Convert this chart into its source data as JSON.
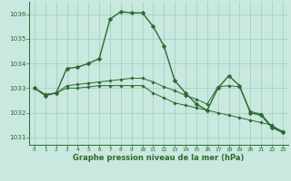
{
  "bg_color": "#c8e8e0",
  "grid_color": "#a0ccb8",
  "line_color": "#2d6a2d",
  "ylim": [
    1030.7,
    1036.5
  ],
  "xlim": [
    -0.5,
    23.5
  ],
  "yticks": [
    1031,
    1032,
    1033,
    1034,
    1035,
    1036
  ],
  "xtick_labels": [
    "0",
    "1",
    "2",
    "3",
    "4",
    "5",
    "6",
    "7",
    "8",
    "9",
    "10",
    "11",
    "12",
    "13",
    "14",
    "15",
    "16",
    "17",
    "18",
    "19",
    "20",
    "21",
    "22",
    "23"
  ],
  "xlabel": "Graphe pression niveau de la mer (hPa)",
  "s1": [
    1033.0,
    1032.7,
    1032.8,
    1033.8,
    1033.85,
    1034.0,
    1034.2,
    1035.8,
    1036.1,
    1036.05,
    1036.05,
    1035.5,
    1034.7,
    1033.3,
    1032.8,
    1032.35,
    1032.1,
    1033.0,
    1033.5,
    1033.1,
    1032.0,
    1031.9,
    1031.4,
    1031.2
  ],
  "s2": [
    1033.0,
    1032.75,
    1032.8,
    1033.1,
    1033.15,
    1033.2,
    1033.25,
    1033.3,
    1033.35,
    1033.4,
    1033.4,
    1033.25,
    1033.05,
    1032.9,
    1032.7,
    1032.55,
    1032.35,
    1033.05,
    1033.1,
    1033.05,
    1032.05,
    1031.95,
    1031.45,
    1031.25
  ],
  "s3": [
    1033.0,
    1032.7,
    1032.8,
    1033.0,
    1033.0,
    1033.05,
    1033.1,
    1033.1,
    1033.1,
    1033.1,
    1033.1,
    1032.8,
    1032.6,
    1032.4,
    1032.3,
    1032.2,
    1032.1,
    1032.0,
    1031.9,
    1031.8,
    1031.7,
    1031.6,
    1031.5,
    1031.2
  ]
}
